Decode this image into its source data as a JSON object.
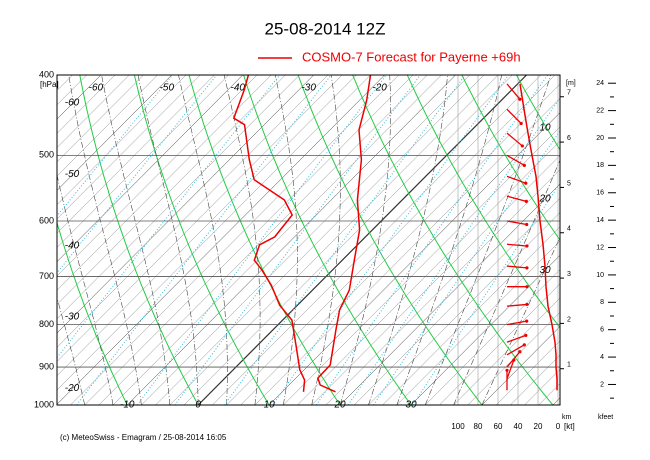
{
  "chart_data": {
    "type": "emagram",
    "title": "25-08-2014  12Z",
    "legend": {
      "label": "COSMO-7 Forecast for Payerne   +69h",
      "color": "#ee0000"
    },
    "footer": "(c) MeteoSwiss - Emagram  /  25-08-2014 16:05",
    "y_label": "[hPa]",
    "ylim": [
      400,
      1000
    ],
    "log_y": true,
    "yticks": [
      400,
      500,
      600,
      700,
      800,
      900,
      1000
    ],
    "xlim": [
      -19.9,
      51
    ],
    "isotherm_labels_top": [
      -60,
      -50,
      -40,
      -30,
      -20
    ],
    "isotherm_labels_left": [
      -60,
      -50,
      -40,
      -30,
      -20
    ],
    "isotherm_labels_bottom": [
      -10,
      0,
      10,
      20,
      30
    ],
    "isotherm_labels_right": [
      10,
      20,
      30
    ],
    "series": [
      {
        "color": "#ee0000",
        "pressure": [
          964,
          946,
          928,
          895,
          812,
          768,
          727,
          669,
          615,
          566,
          506,
          466,
          429,
          400
        ],
        "values": [
          17.5,
          14.4,
          13.1,
          13.0,
          8.9,
          6.6,
          5.2,
          1.7,
          -1.8,
          -6.3,
          -11.4,
          -15.9,
          -19.0,
          -22.0
        ]
      },
      {
        "color": "#ee0000",
        "pressure": [
          964,
          933,
          907,
          847,
          790,
          758,
          717,
          687,
          669,
          641,
          627,
          590,
          566,
          535,
          506,
          459,
          451,
          417,
          400
        ],
        "values": [
          13.0,
          11.5,
          9.4,
          5.4,
          1.3,
          -2.5,
          -6.5,
          -10.0,
          -12.4,
          -13.8,
          -12.8,
          -13.4,
          -16.6,
          -23.7,
          -27.2,
          -32.8,
          -35.2,
          -37.7,
          -39.2
        ]
      }
    ],
    "wind": {
      "color": "#ee0000",
      "xlim": [
        100,
        0
      ],
      "xticks": [
        100,
        80,
        60,
        40,
        20,
        0
      ],
      "unit_label": "[kt]",
      "pressure": [
        410,
        440,
        470,
        500,
        530,
        560,
        600,
        640,
        680,
        720,
        760,
        800,
        840,
        870,
        900,
        930,
        960
      ],
      "speed": [
        38,
        34,
        30,
        26,
        22,
        20,
        18,
        15,
        13,
        12,
        10,
        6,
        3,
        2,
        2,
        1,
        1
      ],
      "direction": [
        320,
        315,
        310,
        300,
        290,
        285,
        280,
        275,
        275,
        270,
        265,
        260,
        250,
        240,
        220,
        200,
        180
      ]
    },
    "height_km": {
      "ylim": [
        0.2,
        7.48
      ],
      "ticks": [
        1,
        2,
        3,
        4,
        5,
        6,
        7
      ],
      "top_label": "[m]",
      "axis_label": "km"
    },
    "height_kft": {
      "ylim": [
        0.5,
        24.6
      ],
      "ticks": [
        2,
        4,
        6,
        8,
        10,
        12,
        14,
        16,
        18,
        20,
        22,
        24
      ],
      "axis_label": "kfeet"
    }
  }
}
